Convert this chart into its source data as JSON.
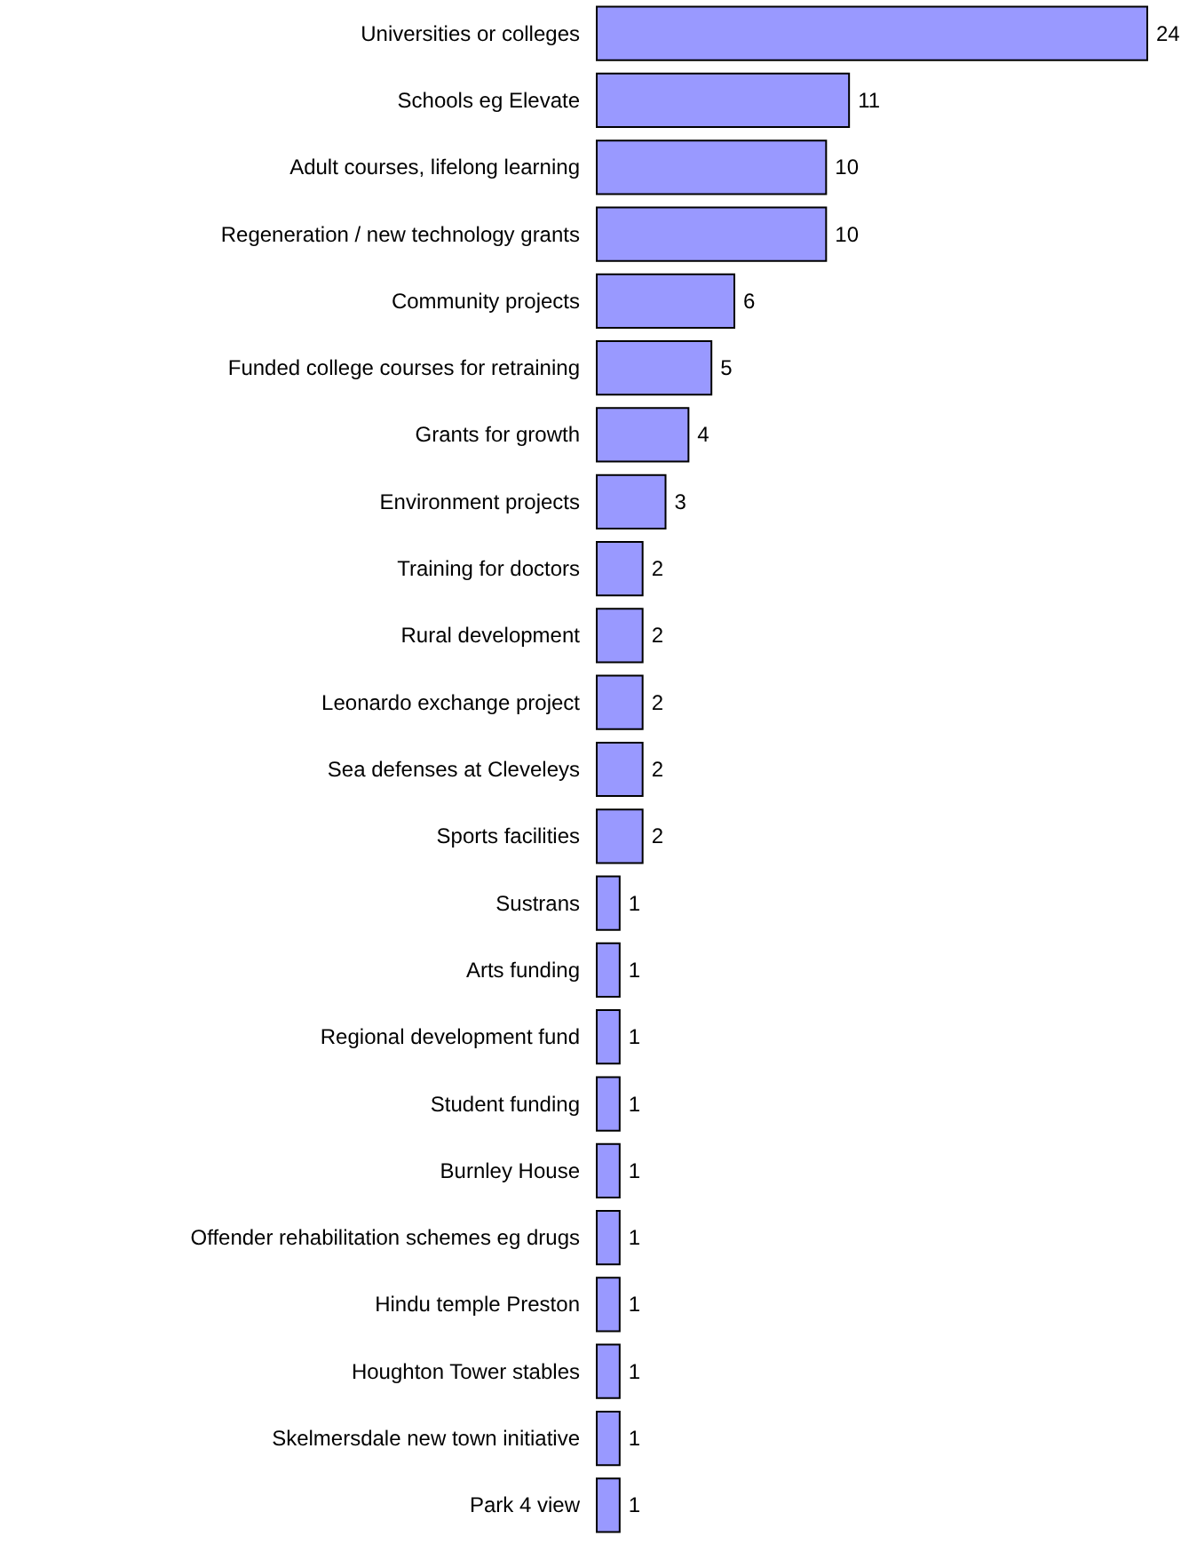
{
  "chart_data": {
    "type": "bar",
    "orientation": "horizontal",
    "categories": [
      "Universities or colleges",
      "Schools eg Elevate",
      "Adult courses, lifelong learning",
      "Regeneration / new technology grants",
      "Community projects",
      "Funded college courses for retraining",
      "Grants for growth",
      "Environment projects",
      "Training for doctors",
      "Rural development",
      "Leonardo exchange project",
      "Sea defenses at Cleveleys",
      "Sports facilities",
      "Sustrans",
      "Arts funding",
      "Regional development fund",
      "Student funding",
      "Burnley House",
      "Offender rehabilitation schemes eg drugs",
      "Hindu temple Preston",
      "Houghton Tower stables",
      "Skelmersdale new town initiative",
      "Park 4 view"
    ],
    "values": [
      24,
      11,
      10,
      10,
      6,
      5,
      4,
      3,
      2,
      2,
      2,
      2,
      2,
      1,
      1,
      1,
      1,
      1,
      1,
      1,
      1,
      1,
      1
    ],
    "color": "#9999ff",
    "xlim": [
      0,
      24
    ],
    "data_labels": true,
    "tick_labels": "y"
  }
}
